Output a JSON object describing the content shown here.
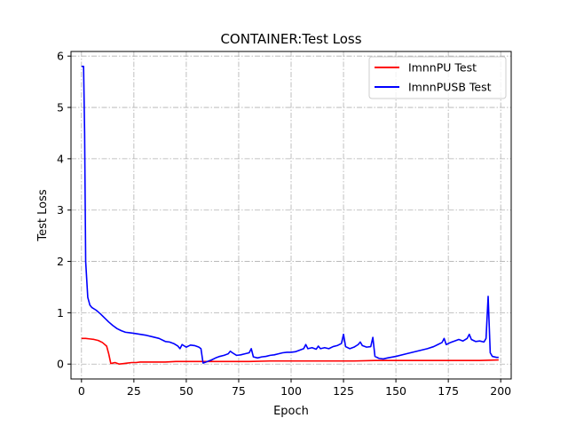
{
  "chart_data": {
    "type": "line",
    "title": "CONTAINER:Test Loss",
    "xlabel": "Epoch",
    "ylabel": "Test Loss",
    "xlim": [
      -5,
      205
    ],
    "ylim": [
      -0.29,
      6.09
    ],
    "xticks": [
      0,
      25,
      50,
      75,
      100,
      125,
      150,
      175,
      200
    ],
    "yticks": [
      0,
      1,
      2,
      3,
      4,
      5,
      6
    ],
    "grid": true,
    "legend_position": "top-right",
    "series": [
      {
        "name": "ImnnPU Test",
        "color": "#ff0000",
        "x": [
          0,
          2,
          4,
          6,
          8,
          10,
          12,
          13,
          14,
          16,
          18,
          20,
          22,
          24,
          26,
          28,
          30,
          35,
          40,
          45,
          50,
          55,
          60,
          70,
          80,
          90,
          100,
          110,
          120,
          130,
          140,
          150,
          160,
          170,
          180,
          190,
          199
        ],
        "y": [
          0.5,
          0.5,
          0.49,
          0.48,
          0.46,
          0.42,
          0.35,
          0.2,
          0.01,
          0.03,
          0.0,
          0.01,
          0.02,
          0.03,
          0.03,
          0.04,
          0.04,
          0.04,
          0.04,
          0.05,
          0.05,
          0.05,
          0.05,
          0.05,
          0.05,
          0.06,
          0.06,
          0.06,
          0.06,
          0.06,
          0.07,
          0.07,
          0.07,
          0.07,
          0.07,
          0.07,
          0.08
        ]
      },
      {
        "name": "ImnnPUSB Test",
        "color": "#0000ff",
        "x": [
          0,
          1,
          1.5,
          2,
          3,
          4,
          5,
          7,
          9,
          11,
          13,
          15,
          17,
          19,
          21,
          23,
          25,
          28,
          31,
          34,
          37,
          40,
          42,
          44,
          46,
          47,
          48,
          50,
          52,
          54,
          56,
          57,
          58,
          60,
          62,
          64,
          66,
          68,
          70,
          71,
          72,
          74,
          76,
          78,
          80,
          81,
          82,
          84,
          86,
          88,
          90,
          92,
          94,
          96,
          98,
          100,
          102,
          104,
          106,
          107,
          108,
          110,
          112,
          113,
          114,
          116,
          118,
          120,
          122,
          124,
          125,
          126,
          128,
          130,
          132,
          133,
          134,
          136,
          138,
          139,
          140,
          142,
          144,
          146,
          150,
          155,
          160,
          165,
          168,
          170,
          172,
          173,
          174,
          176,
          178,
          180,
          182,
          184,
          185,
          186,
          188,
          190,
          192,
          193,
          194,
          195,
          196,
          198,
          199
        ],
        "y": [
          5.8,
          5.8,
          4.5,
          2.0,
          1.3,
          1.15,
          1.1,
          1.05,
          0.98,
          0.9,
          0.82,
          0.75,
          0.69,
          0.65,
          0.62,
          0.61,
          0.6,
          0.58,
          0.56,
          0.53,
          0.5,
          0.44,
          0.43,
          0.4,
          0.35,
          0.3,
          0.38,
          0.33,
          0.37,
          0.36,
          0.33,
          0.3,
          0.02,
          0.05,
          0.08,
          0.12,
          0.15,
          0.17,
          0.2,
          0.25,
          0.22,
          0.17,
          0.18,
          0.2,
          0.22,
          0.3,
          0.14,
          0.12,
          0.14,
          0.15,
          0.17,
          0.18,
          0.2,
          0.22,
          0.23,
          0.23,
          0.24,
          0.27,
          0.3,
          0.38,
          0.3,
          0.32,
          0.29,
          0.35,
          0.3,
          0.32,
          0.3,
          0.34,
          0.36,
          0.4,
          0.58,
          0.34,
          0.3,
          0.33,
          0.38,
          0.43,
          0.36,
          0.33,
          0.34,
          0.52,
          0.15,
          0.11,
          0.1,
          0.12,
          0.15,
          0.2,
          0.25,
          0.3,
          0.34,
          0.38,
          0.42,
          0.5,
          0.38,
          0.42,
          0.45,
          0.48,
          0.45,
          0.5,
          0.58,
          0.48,
          0.44,
          0.45,
          0.43,
          0.5,
          1.32,
          0.22,
          0.15,
          0.13,
          0.13
        ]
      }
    ]
  }
}
